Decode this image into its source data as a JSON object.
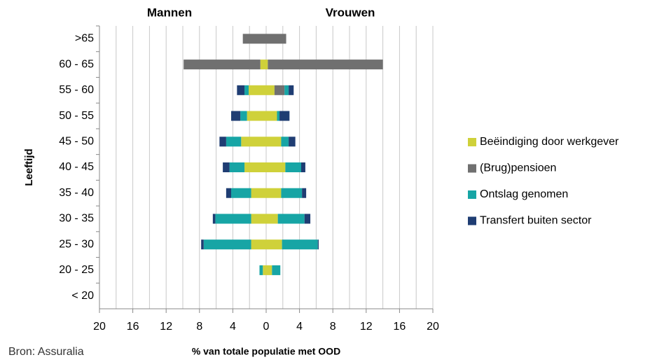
{
  "chart_data": {
    "type": "pyramid",
    "left_label": "Mannen",
    "right_label": "Vrouwen",
    "y_axis_label": "Leeftijd",
    "x_axis_label": "% van totale populatie met OOD",
    "source": "Bron: Assuralia",
    "categories": [
      ">65",
      "60 - 65",
      "55 - 60",
      "50 - 55",
      "45 - 50",
      "40 - 45",
      "35 - 40",
      "30 - 35",
      "25 - 30",
      "20 - 25",
      "< 20"
    ],
    "series": [
      {
        "name": "Beëindiging door werkgever",
        "color": "#cfd13a",
        "men": [
          0,
          0.7,
          2.1,
          2.3,
          3.0,
          2.6,
          1.8,
          1.8,
          1.8,
          0.4,
          0
        ],
        "women": [
          0,
          0.2,
          1.0,
          1.3,
          1.8,
          2.3,
          1.8,
          1.4,
          1.9,
          0.7,
          0
        ]
      },
      {
        "name": "(Brug)pensioen",
        "color": "#707070",
        "men": [
          2.8,
          9.2,
          0,
          0,
          0,
          0,
          0,
          0,
          0,
          0,
          0
        ],
        "women": [
          2.4,
          13.8,
          1.2,
          0,
          0,
          0,
          0,
          0,
          0,
          0,
          0
        ]
      },
      {
        "name": "Ontslag genomen",
        "color": "#17a5a5",
        "men": [
          0,
          0,
          0.5,
          0.8,
          1.8,
          1.8,
          2.4,
          4.3,
          5.7,
          0.4,
          0
        ],
        "women": [
          0,
          0,
          0.5,
          0.3,
          0.9,
          1.9,
          2.5,
          3.2,
          4.3,
          1.0,
          0
        ]
      },
      {
        "name": "Transfert buiten sector",
        "color": "#1f3d73",
        "men": [
          0,
          0,
          0.9,
          1.1,
          0.8,
          0.8,
          0.6,
          0.3,
          0.3,
          0,
          0
        ],
        "women": [
          0,
          0,
          0.6,
          1.2,
          0.8,
          0.5,
          0.5,
          0.7,
          0.1,
          0,
          0
        ]
      }
    ],
    "xlim": [
      -20,
      20
    ],
    "xticks": [
      {
        "value": -20,
        "label": "20"
      },
      {
        "value": -16,
        "label": "16"
      },
      {
        "value": -12,
        "label": "12"
      },
      {
        "value": -8,
        "label": "8"
      },
      {
        "value": -4,
        "label": "4"
      },
      0,
      4,
      8,
      12,
      16,
      20
    ],
    "xminor": [
      -18,
      -14,
      -10,
      -6,
      -2,
      2,
      6,
      10,
      14,
      18
    ],
    "grid": true
  }
}
